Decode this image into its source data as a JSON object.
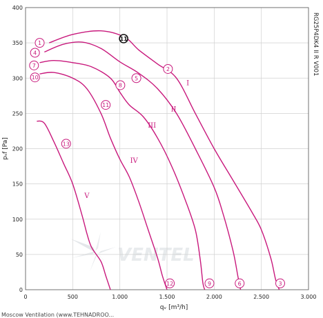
{
  "chart_data": {
    "type": "line",
    "xlabel": "qᵥ [m³/h]",
    "ylabel": "pₛf [Pa]",
    "xlim": [
      0,
      3000
    ],
    "ylim": [
      0,
      400
    ],
    "x_ticks": [
      {
        "value": 0,
        "label": "0"
      },
      {
        "value": 500,
        "label": "500"
      },
      {
        "value": 1000,
        "label": "1.000"
      },
      {
        "value": 1500,
        "label": "1.500"
      },
      {
        "value": 2000,
        "label": "2.000"
      },
      {
        "value": 2500,
        "label": "2.500"
      },
      {
        "value": 3000,
        "label": "3.000"
      }
    ],
    "y_ticks": [
      0,
      50,
      100,
      150,
      200,
      250,
      300,
      350,
      400
    ],
    "grid": true,
    "line_color": "#c8187c",
    "model_code": "RG25P4DK4 II R V001",
    "series": [
      {
        "name": "I",
        "points": [
          [
            250,
            350
          ],
          [
            500,
            362
          ],
          [
            800,
            367
          ],
          [
            1050,
            358
          ],
          [
            1200,
            340
          ],
          [
            1400,
            320
          ],
          [
            1600,
            300
          ],
          [
            1800,
            250
          ],
          [
            2000,
            200
          ],
          [
            2200,
            155
          ],
          [
            2400,
            110
          ],
          [
            2500,
            85
          ],
          [
            2600,
            45
          ],
          [
            2650,
            15
          ],
          [
            2690,
            0
          ]
        ]
      },
      {
        "name": "II",
        "points": [
          [
            200,
            337
          ],
          [
            400,
            348
          ],
          [
            600,
            351
          ],
          [
            800,
            342
          ],
          [
            1000,
            323
          ],
          [
            1200,
            307
          ],
          [
            1400,
            285
          ],
          [
            1600,
            250
          ],
          [
            1800,
            200
          ],
          [
            2000,
            145
          ],
          [
            2100,
            105
          ],
          [
            2200,
            55
          ],
          [
            2250,
            20
          ],
          [
            2280,
            0
          ]
        ]
      },
      {
        "name": "III",
        "points": [
          [
            150,
            322
          ],
          [
            300,
            325
          ],
          [
            500,
            322
          ],
          [
            700,
            316
          ],
          [
            900,
            300
          ],
          [
            1000,
            280
          ],
          [
            1100,
            262
          ],
          [
            1250,
            245
          ],
          [
            1400,
            215
          ],
          [
            1550,
            175
          ],
          [
            1700,
            125
          ],
          [
            1800,
            85
          ],
          [
            1850,
            45
          ],
          [
            1880,
            10
          ],
          [
            1900,
            0
          ]
        ]
      },
      {
        "name": "IV",
        "points": [
          [
            150,
            306
          ],
          [
            300,
            308
          ],
          [
            500,
            300
          ],
          [
            650,
            285
          ],
          [
            800,
            250
          ],
          [
            900,
            215
          ],
          [
            1000,
            185
          ],
          [
            1100,
            160
          ],
          [
            1200,
            125
          ],
          [
            1300,
            85
          ],
          [
            1400,
            45
          ],
          [
            1450,
            20
          ],
          [
            1500,
            0
          ]
        ]
      },
      {
        "name": "V",
        "points": [
          [
            120,
            239
          ],
          [
            200,
            236
          ],
          [
            300,
            210
          ],
          [
            400,
            180
          ],
          [
            500,
            150
          ],
          [
            600,
            105
          ],
          [
            650,
            80
          ],
          [
            700,
            60
          ],
          [
            800,
            40
          ],
          [
            850,
            20
          ],
          [
            900,
            0
          ]
        ]
      }
    ],
    "operating_points": [
      {
        "label": "1",
        "x": 150,
        "y": 350
      },
      {
        "label": "4",
        "x": 100,
        "y": 336
      },
      {
        "label": "7",
        "x": 90,
        "y": 318
      },
      {
        "label": "10",
        "x": 100,
        "y": 301
      },
      {
        "label": "11",
        "x": 1040,
        "y": 356,
        "style": "outline"
      },
      {
        "label": "2",
        "x": 1510,
        "y": 313
      },
      {
        "label": "5",
        "x": 1175,
        "y": 300
      },
      {
        "label": "8",
        "x": 1005,
        "y": 290
      },
      {
        "label": "11",
        "x": 850,
        "y": 262
      },
      {
        "label": "13",
        "x": 430,
        "y": 207
      },
      {
        "label": "12",
        "x": 1530,
        "y": 9
      },
      {
        "label": "9",
        "x": 1950,
        "y": 9
      },
      {
        "label": "6",
        "x": 2270,
        "y": 9
      },
      {
        "label": "3",
        "x": 2700,
        "y": 9
      }
    ],
    "curve_labels": [
      {
        "label": "I",
        "x": 1720,
        "y": 290
      },
      {
        "label": "II",
        "x": 1570,
        "y": 253
      },
      {
        "label": "III",
        "x": 1340,
        "y": 230
      },
      {
        "label": "IV",
        "x": 1150,
        "y": 180
      },
      {
        "label": "V",
        "x": 650,
        "y": 130
      }
    ]
  },
  "watermark": "VENTEL",
  "footer_text": "Moscow  Ventilation  (www.TEHNADROO..."
}
